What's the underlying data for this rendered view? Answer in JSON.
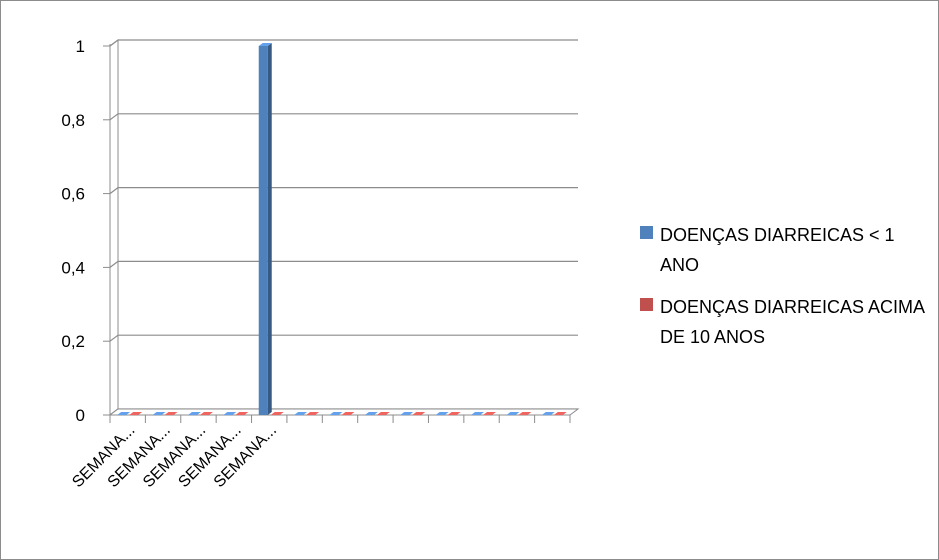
{
  "chart_data": {
    "type": "bar",
    "title": "",
    "xlabel": "",
    "ylabel": "",
    "categories": [
      "SEMANA...",
      "SEMANA...",
      "SEMANA...",
      "SEMANA...",
      "SEMANA...",
      "",
      "",
      "",
      "",
      "",
      "",
      "",
      ""
    ],
    "series": [
      {
        "name": "DOENÇAS DIARREICAS < 1 ANO",
        "color": "#4f81bd",
        "values": [
          0,
          0,
          0,
          0,
          1,
          0,
          0,
          0,
          0,
          0,
          0,
          0,
          0
        ]
      },
      {
        "name": "DOENÇAS DIARREICAS ACIMA DE 10 ANOS",
        "color": "#c0504d",
        "values": [
          0,
          0,
          0,
          0,
          0,
          0,
          0,
          0,
          0,
          0,
          0,
          0,
          0
        ]
      }
    ],
    "yticks": [
      "0",
      "0,2",
      "0,4",
      "0,6",
      "0,8",
      "1"
    ],
    "ylim": [
      0,
      1
    ],
    "grid": true,
    "style": "3d-column",
    "legend_position": "right"
  }
}
